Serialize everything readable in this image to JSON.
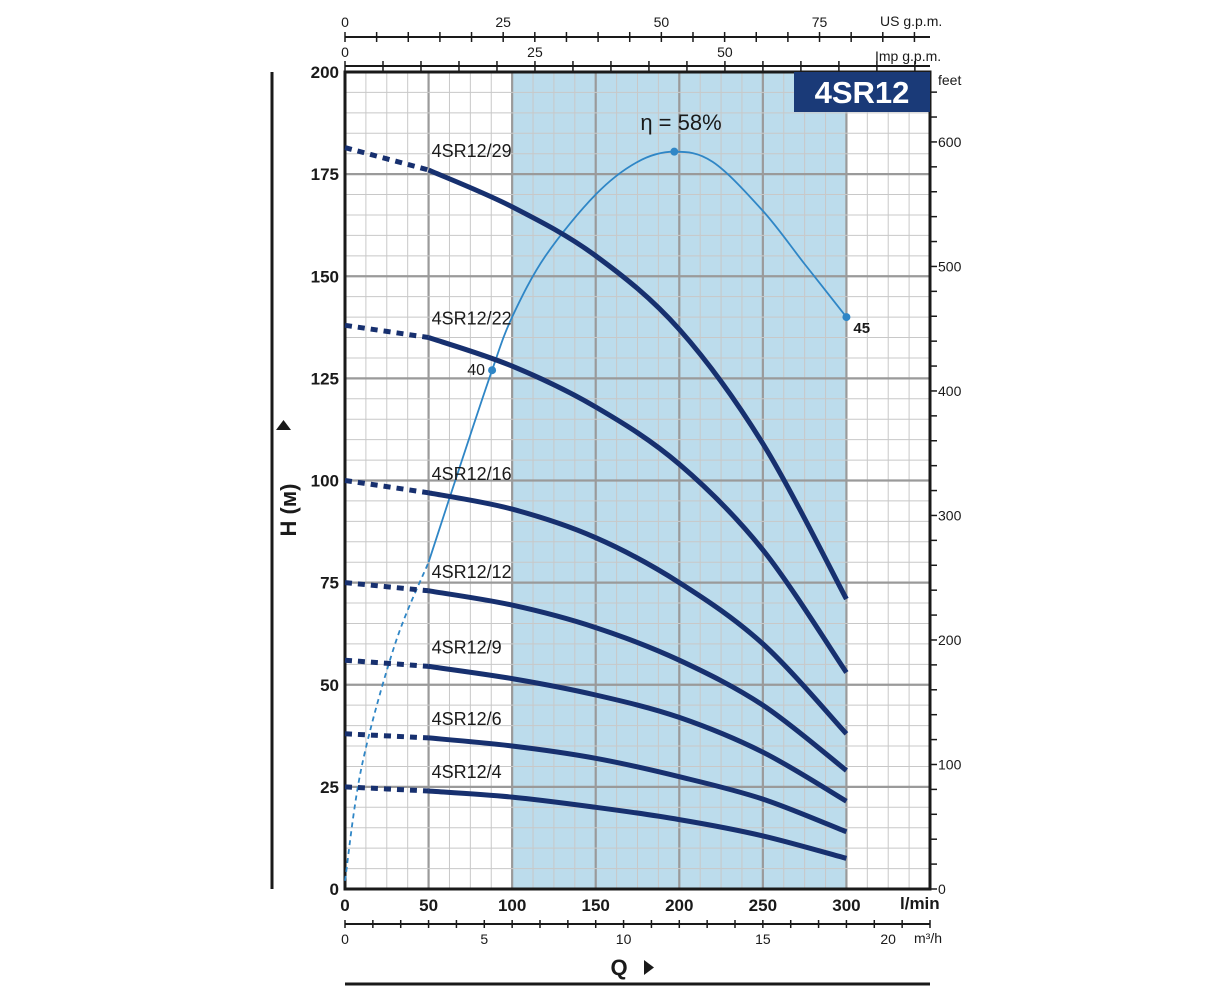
{
  "chart_data": {
    "type": "line",
    "model_badge": "4SR12",
    "ylabel": "H (м)",
    "xlabel": "Q",
    "x_unit": "l/min",
    "flow_m3h_unit": "m³/h",
    "right_unit": "feet",
    "top_unit_us": "US g.p.m.",
    "top_unit_imp": "Imp g.p.m.",
    "xlim": [
      0,
      350
    ],
    "ylim": [
      0,
      200
    ],
    "x_ticks": [
      0,
      50,
      100,
      150,
      200,
      250,
      300
    ],
    "y_ticks": [
      0,
      25,
      50,
      75,
      100,
      125,
      150,
      175,
      200
    ],
    "feet_ticks": [
      0,
      100,
      200,
      300,
      400,
      500,
      600
    ],
    "us_gpm_ticks": [
      0,
      25,
      50,
      75
    ],
    "imp_gpm_ticks": [
      0,
      25,
      50
    ],
    "m3h_ticks": [
      0,
      5,
      10,
      15,
      20
    ],
    "operating_range_lpm": [
      100,
      300
    ],
    "series": [
      {
        "name": "4SR12/29",
        "dashed_x": [
          0,
          50
        ],
        "dashed_y": [
          181.5,
          176
        ],
        "x": [
          50,
          100,
          150,
          200,
          250,
          300
        ],
        "y": [
          176,
          167,
          155,
          137,
          109,
          71
        ]
      },
      {
        "name": "4SR12/22",
        "dashed_x": [
          0,
          50
        ],
        "dashed_y": [
          138,
          135
        ],
        "x": [
          50,
          100,
          150,
          200,
          250,
          300
        ],
        "y": [
          135,
          128,
          118,
          104,
          83,
          53
        ]
      },
      {
        "name": "4SR12/16",
        "dashed_x": [
          0,
          50
        ],
        "dashed_y": [
          100,
          97
        ],
        "x": [
          50,
          100,
          150,
          200,
          250,
          300
        ],
        "y": [
          97,
          93,
          86,
          75,
          60,
          38
        ]
      },
      {
        "name": "4SR12/12",
        "dashed_x": [
          0,
          50
        ],
        "dashed_y": [
          75,
          73
        ],
        "x": [
          50,
          100,
          150,
          200,
          250,
          300
        ],
        "y": [
          73,
          69.5,
          64,
          56,
          45,
          29
        ]
      },
      {
        "name": "4SR12/9",
        "dashed_x": [
          0,
          50
        ],
        "dashed_y": [
          56,
          54.5
        ],
        "x": [
          50,
          100,
          150,
          200,
          250,
          300
        ],
        "y": [
          54.5,
          51.5,
          47.5,
          42,
          33.5,
          21.5
        ]
      },
      {
        "name": "4SR12/6",
        "dashed_x": [
          0,
          50
        ],
        "dashed_y": [
          38,
          37
        ],
        "x": [
          50,
          100,
          150,
          200,
          250,
          300
        ],
        "y": [
          37,
          35,
          32,
          27.5,
          22,
          14
        ]
      },
      {
        "name": "4SR12/4",
        "dashed_x": [
          0,
          50
        ],
        "dashed_y": [
          25,
          24
        ],
        "x": [
          50,
          100,
          150,
          200,
          250,
          300
        ],
        "y": [
          24,
          22.5,
          20,
          17,
          13,
          7.5
        ]
      }
    ],
    "efficiency": {
      "label": "η = 58%",
      "peak_value": 58,
      "peak": [
        197,
        180.5
      ],
      "point_labels": [
        {
          "text": "40",
          "x": 88,
          "y": 127
        },
        {
          "text": "45",
          "x": 300,
          "y": 140
        }
      ],
      "dashed_x": [
        0,
        10,
        30,
        50
      ],
      "dashed_y": [
        2,
        30,
        60,
        80
      ],
      "solid_x": [
        50,
        70,
        88,
        100,
        120,
        150,
        175,
        197,
        220,
        250,
        275,
        300
      ],
      "solid_y": [
        80,
        105,
        127,
        140,
        155,
        170,
        178,
        180.5,
        178,
        166,
        153,
        140
      ]
    },
    "colors": {
      "curve": "#17306f",
      "efficiency": "#2f86c6",
      "range_fill": "#bcdcec",
      "badge": "#1a3a78",
      "grid": "#c8c8c8",
      "grid_major": "#9a9a9a"
    }
  }
}
